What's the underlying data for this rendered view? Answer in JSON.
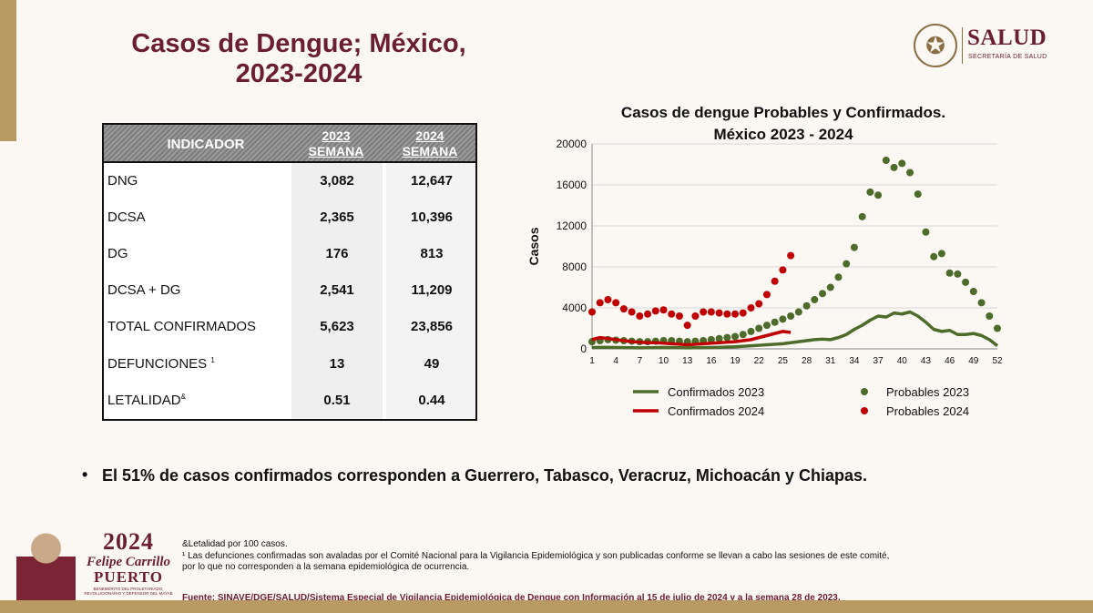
{
  "slide": {
    "title_line1": "Casos de Dengue; México,",
    "title_line2": "2023-2024"
  },
  "logo": {
    "name": "SALUD",
    "subtitle": "SECRETARÍA DE SALUD",
    "icon": "eagle-seal-icon"
  },
  "table": {
    "header_indicator": "INDICADOR",
    "header_2023_year": "2023",
    "header_2023_week": "SEMANA",
    "header_2024_year": "2024",
    "header_2024_week": "SEMANA",
    "rows": [
      {
        "label": "DNG",
        "sup": "",
        "v2023": "3,082",
        "v2024": "12,647"
      },
      {
        "label": "DCSA",
        "sup": "",
        "v2023": "2,365",
        "v2024": "10,396"
      },
      {
        "label": "DG",
        "sup": "",
        "v2023": "176",
        "v2024": "813"
      },
      {
        "label": "DCSA + DG",
        "sup": "",
        "v2023": "2,541",
        "v2024": "11,209"
      },
      {
        "label": "TOTAL CONFIRMADOS",
        "sup": "",
        "v2023": "5,623",
        "v2024": "23,856"
      },
      {
        "label": "DEFUNCIONES",
        "sup": "1",
        "v2023": "13",
        "v2024": "49"
      },
      {
        "label": "LETALIDAD",
        "sup": "&",
        "v2023": "0.51",
        "v2024": "0.44"
      }
    ]
  },
  "chart_data": {
    "type": "line",
    "title_line1": "Casos de dengue Probables y Confirmados.",
    "title_line2": "México 2023 - 2024",
    "ylabel": "Casos",
    "xlabel": "",
    "ylim": [
      0,
      20000
    ],
    "y_ticks": [
      "0",
      "4000",
      "8000",
      "12000",
      "16000",
      "20000"
    ],
    "x_ticks": [
      "1",
      "4",
      "7",
      "10",
      "13",
      "16",
      "19",
      "22",
      "25",
      "28",
      "31",
      "34",
      "37",
      "40",
      "43",
      "46",
      "49",
      "52"
    ],
    "grid": "horizontal",
    "legend_placement": "bottom",
    "series": [
      {
        "name": "Confirmados 2023",
        "style": "line",
        "color": "#4d6b2a",
        "x": [
          1,
          2,
          3,
          4,
          5,
          6,
          7,
          8,
          9,
          10,
          11,
          12,
          13,
          14,
          15,
          16,
          17,
          18,
          19,
          20,
          21,
          22,
          23,
          24,
          25,
          26,
          27,
          28,
          29,
          30,
          31,
          32,
          33,
          34,
          35,
          36,
          37,
          38,
          39,
          40,
          41,
          42,
          43,
          44,
          45,
          46,
          47,
          48,
          49,
          50,
          51,
          52
        ],
        "values": [
          120,
          150,
          140,
          130,
          120,
          110,
          100,
          110,
          120,
          130,
          120,
          110,
          100,
          110,
          120,
          130,
          150,
          180,
          200,
          250,
          300,
          350,
          400,
          450,
          500,
          600,
          700,
          800,
          900,
          950,
          900,
          1100,
          1400,
          1900,
          2300,
          2800,
          3200,
          3100,
          3500,
          3400,
          3600,
          3200,
          2600,
          1900,
          1700,
          1800,
          1400,
          1400,
          1500,
          1300,
          900,
          300
        ]
      },
      {
        "name": "Probables 2023",
        "style": "dots",
        "color": "#4d6b2a",
        "x": [
          1,
          2,
          3,
          4,
          5,
          6,
          7,
          8,
          9,
          10,
          11,
          12,
          13,
          14,
          15,
          16,
          17,
          18,
          19,
          20,
          21,
          22,
          23,
          24,
          25,
          26,
          27,
          28,
          29,
          30,
          31,
          32,
          33,
          34,
          35,
          36,
          37,
          38,
          39,
          40,
          41,
          42,
          43,
          44,
          45,
          46,
          47,
          48,
          49,
          50,
          51,
          52
        ],
        "values": [
          700,
          800,
          900,
          850,
          800,
          750,
          700,
          700,
          750,
          800,
          800,
          750,
          700,
          750,
          800,
          900,
          1000,
          1100,
          1200,
          1400,
          1700,
          2000,
          2300,
          2600,
          2900,
          3200,
          3600,
          4200,
          4800,
          5400,
          6000,
          7000,
          8300,
          9900,
          12900,
          15300,
          15000,
          18400,
          17700,
          18100,
          17200,
          15100,
          11400,
          9000,
          9300,
          7400,
          7300,
          6500,
          5600,
          4500,
          3200,
          2000
        ]
      },
      {
        "name": "Confirmados 2024",
        "style": "line",
        "color": "#c00000",
        "x": [
          1,
          2,
          3,
          4,
          5,
          6,
          7,
          8,
          9,
          10,
          11,
          12,
          13,
          14,
          15,
          16,
          17,
          18,
          19,
          20,
          21,
          22,
          23,
          24,
          25,
          26
        ],
        "values": [
          900,
          1100,
          1000,
          900,
          800,
          700,
          650,
          600,
          600,
          550,
          500,
          450,
          400,
          450,
          500,
          550,
          600,
          650,
          700,
          800,
          900,
          1100,
          1300,
          1500,
          1700,
          1600
        ]
      },
      {
        "name": "Probables 2024",
        "style": "dots",
        "color": "#c00000",
        "x": [
          1,
          2,
          3,
          4,
          5,
          6,
          7,
          8,
          9,
          10,
          11,
          12,
          13,
          14,
          15,
          16,
          17,
          18,
          19,
          20,
          21,
          22,
          23,
          24,
          25,
          26
        ],
        "values": [
          3600,
          4500,
          4800,
          4500,
          3900,
          3600,
          3200,
          3400,
          3700,
          3800,
          3400,
          3200,
          2300,
          3200,
          3600,
          3600,
          3500,
          3400,
          3400,
          3500,
          4000,
          4400,
          5300,
          6600,
          7700,
          9100
        ]
      }
    ]
  },
  "bullet": {
    "dot": "•",
    "text": "El 51% de casos confirmados corresponden a Guerrero, Tabasco, Veracruz, Michoacán y Chiapas."
  },
  "notes": {
    "line1": "&Letalidad por 100 casos.",
    "line2": "¹ Las defunciones confirmadas son avaladas por el Comité Nacional para la Vigilancia Epidemiológica y son publicadas conforme se llevan a cabo las sesiones de este comité, por lo que no corresponden a la semana epidemiológica de ocurrencia.",
    "source": "Fuente: SINAVE/DGE/SALUD/Sistema Especial de Vigilancia Epidemiológica de Dengue con Información al 15 de julio de 2024 y a la semana 28 de 2023."
  },
  "badge": {
    "year": "2024",
    "name": "Felipe Carrillo",
    "surname": "PUERTO",
    "tagline": "BENEMÉRITO DEL PROLETARIADO, REVOLUCIONARIO Y DEFENSOR DEL MAYAB"
  },
  "colors": {
    "brand": "#6b1e2f",
    "gold": "#b99a63",
    "green": "#4d6b2a",
    "red": "#c00000"
  }
}
